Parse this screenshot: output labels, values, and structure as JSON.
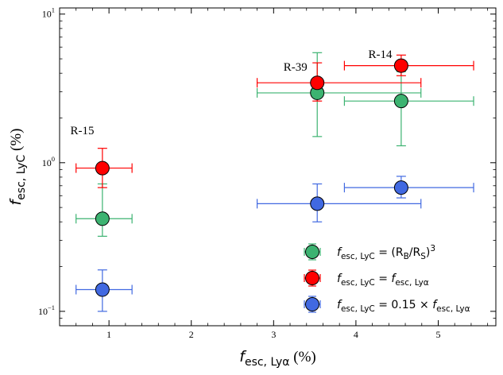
{
  "chart_data": {
    "type": "scatter",
    "xlabel": {
      "main": "f",
      "sub": "esc, Lyα",
      "unit": " (%)"
    },
    "ylabel": {
      "main": "f",
      "sub": "esc, LyC",
      "unit": " (%)"
    },
    "xlim": [
      0.4,
      5.7
    ],
    "ylim": [
      0.08,
      11
    ],
    "yscale": "log",
    "x_ticks": [
      1,
      2,
      3,
      4,
      5
    ],
    "x_tick_labels": [
      "1",
      "2",
      "3",
      "4",
      "5"
    ],
    "y_ticks": [
      {
        "value": 0.1,
        "base": "10",
        "exp": "−1"
      },
      {
        "value": 1,
        "base": "10",
        "exp": "0"
      },
      {
        "value": 10,
        "base": "10",
        "exp": "1"
      }
    ],
    "series": [
      {
        "name": "green",
        "color": "#3cb371",
        "legend": {
          "main": "f",
          "sub": "esc, LyC",
          "rhs": " = (R",
          "rhs_sub1": "B",
          "rhs_mid": "/R",
          "rhs_sub2": "S",
          "rhs_end": ")",
          "rhs_sup": "3"
        },
        "points": [
          {
            "x": 0.92,
            "xerr": [
              0.32,
              0.36
            ],
            "y": 0.42,
            "yerr": [
              0.32,
              0.72
            ]
          },
          {
            "x": 3.53,
            "xerr": [
              0.73,
              1.26
            ],
            "y": 2.95,
            "yerr": [
              1.5,
              5.5
            ]
          },
          {
            "x": 4.55,
            "xerr": [
              0.69,
              0.88
            ],
            "y": 2.6,
            "yerr": [
              1.3,
              4.1
            ]
          }
        ]
      },
      {
        "name": "red",
        "color": "#ff0000",
        "legend": {
          "main": "f",
          "sub": "esc, LyC",
          "rhs": " = ",
          "rhs2_main": "f",
          "rhs2_sub": "esc, Lyα"
        },
        "points": [
          {
            "x": 0.92,
            "xerr": [
              0.32,
              0.36
            ],
            "y": 0.92,
            "yerr": [
              0.68,
              1.25
            ]
          },
          {
            "x": 3.53,
            "xerr": [
              0.73,
              1.26
            ],
            "y": 3.45,
            "yerr": [
              2.6,
              4.7
            ]
          },
          {
            "x": 4.55,
            "xerr": [
              0.69,
              0.88
            ],
            "y": 4.5,
            "yerr": [
              3.85,
              5.3
            ]
          }
        ]
      },
      {
        "name": "blue",
        "color": "#4169e1",
        "legend": {
          "main": "f",
          "sub": "esc, LyC",
          "rhs": " = 0.15 × ",
          "rhs2_main": "f",
          "rhs2_sub": "esc, Lyα"
        },
        "points": [
          {
            "x": 0.92,
            "xerr": [
              0.32,
              0.36
            ],
            "y": 0.14,
            "yerr": [
              0.1,
              0.19
            ]
          },
          {
            "x": 3.53,
            "xerr": [
              0.73,
              1.26
            ],
            "y": 0.53,
            "yerr": [
              0.4,
              0.72
            ]
          },
          {
            "x": 4.55,
            "xerr": [
              0.69,
              0.88
            ],
            "y": 0.68,
            "yerr": [
              0.58,
              0.81
            ]
          }
        ]
      }
    ],
    "annotations": [
      {
        "text": "R-15",
        "x": 0.53,
        "y": 1.55
      },
      {
        "text": "R-39",
        "x": 3.12,
        "y": 4.15
      },
      {
        "text": "R-14",
        "x": 4.15,
        "y": 5.05
      }
    ],
    "legend_position": "lower-right"
  }
}
